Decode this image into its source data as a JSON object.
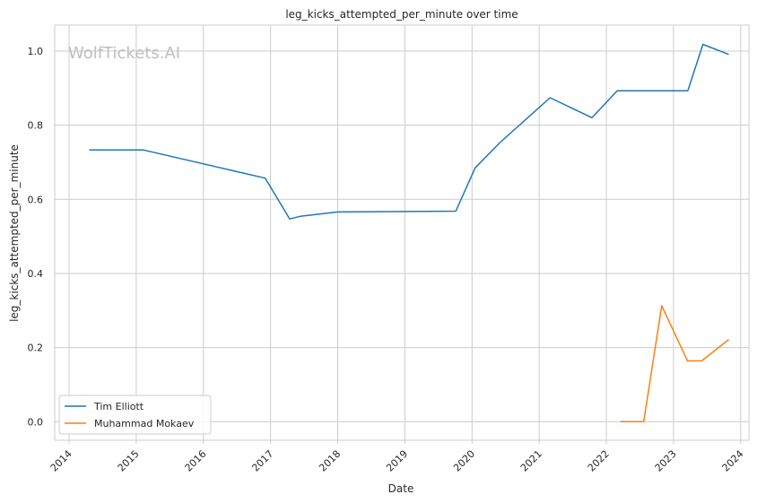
{
  "chart_data": {
    "type": "line",
    "title": "leg_kicks_attempted_per_minute over time",
    "xlabel": "Date",
    "ylabel": "leg_kicks_attempted_per_minute",
    "watermark": "WolfTickets.AI",
    "xlim": [
      "2013-10-15",
      "2024-02-15"
    ],
    "ylim": [
      -0.05,
      1.07
    ],
    "x_ticks": [
      "2014",
      "2015",
      "2016",
      "2017",
      "2018",
      "2019",
      "2020",
      "2021",
      "2022",
      "2023",
      "2024"
    ],
    "y_ticks": [
      "0.0",
      "0.2",
      "0.4",
      "0.6",
      "0.8",
      "1.0"
    ],
    "grid": true,
    "legend_position": "lower-left",
    "series": [
      {
        "name": "Tim Elliott",
        "color": "#1f77b4",
        "points": [
          [
            "2014-04-20",
            0.733
          ],
          [
            "2015-02-10",
            0.733
          ],
          [
            "2016-12-03",
            0.657
          ],
          [
            "2017-04-15",
            0.547
          ],
          [
            "2017-06-10",
            0.554
          ],
          [
            "2018-01-01",
            0.566
          ],
          [
            "2019-10-05",
            0.568
          ],
          [
            "2020-01-18",
            0.685
          ],
          [
            "2020-06-01",
            0.753
          ],
          [
            "2021-03-01",
            0.874
          ],
          [
            "2021-10-15",
            0.82
          ],
          [
            "2022-03-01",
            0.893
          ],
          [
            "2023-03-20",
            0.893
          ],
          [
            "2023-06-10",
            1.018
          ],
          [
            "2023-10-28",
            0.991
          ]
        ]
      },
      {
        "name": "Muhammad Mokaev",
        "color": "#ff7f0e",
        "points": [
          [
            "2022-03-19",
            0.0
          ],
          [
            "2022-07-23",
            0.0
          ],
          [
            "2022-10-29",
            0.313
          ],
          [
            "2023-03-18",
            0.164
          ],
          [
            "2023-06-03",
            0.164
          ],
          [
            "2023-10-28",
            0.222
          ]
        ]
      }
    ]
  }
}
